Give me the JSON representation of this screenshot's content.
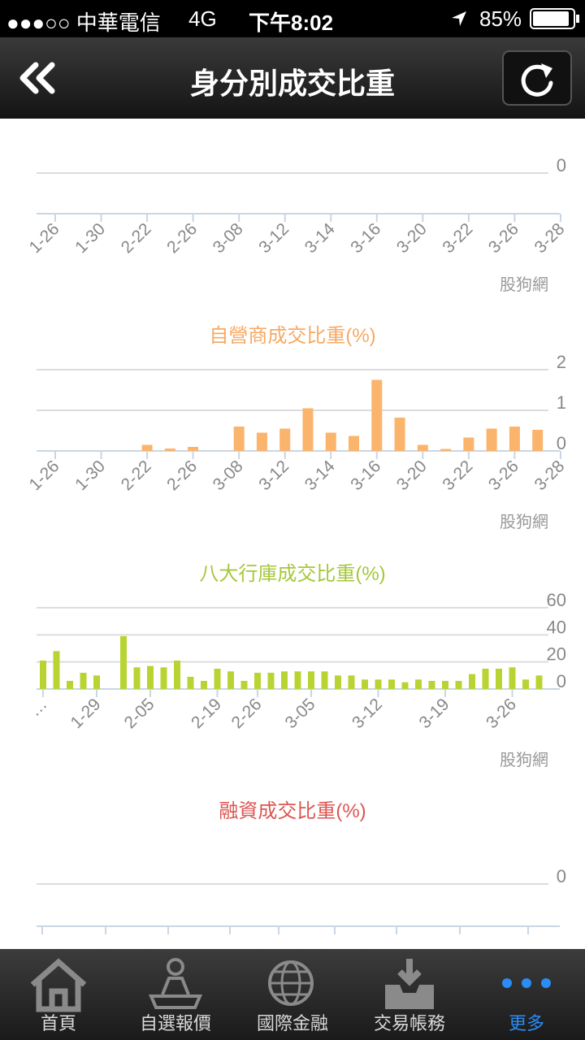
{
  "status_bar": {
    "carrier": "●●●○○ 中華電信",
    "network": "4G",
    "time": "下午8:02",
    "battery": "85%"
  },
  "header": {
    "title": "身分別成交比重"
  },
  "chart_data": [
    {
      "type": "bar",
      "source": "股狗網",
      "categories": [
        "1-26",
        null,
        "1-30",
        null,
        "2-22",
        null,
        "2-26",
        null,
        "3-08",
        null,
        "3-12",
        null,
        "3-14",
        null,
        "3-16",
        null,
        "3-20",
        null,
        "3-22",
        null,
        "3-26",
        null,
        "3-28"
      ],
      "yticks": [
        0
      ]
    },
    {
      "type": "bar",
      "title": "自營商成交比重(%)",
      "source": "股狗網",
      "color": "#fbb46c",
      "categories": [
        "1-26",
        null,
        "1-30",
        null,
        "2-22",
        null,
        "2-26",
        null,
        "3-08",
        null,
        "3-12",
        null,
        "3-14",
        null,
        "3-16",
        null,
        "3-20",
        null,
        "3-22",
        null,
        "3-26",
        null,
        "3-28"
      ],
      "values": [
        null,
        null,
        null,
        null,
        0.15,
        0.06,
        0.1,
        null,
        0.6,
        0.45,
        0.55,
        1.05,
        0.45,
        0.37,
        1.75,
        0.82,
        0.15,
        0.05,
        0.33,
        0.55,
        0.6,
        0.52,
        null
      ],
      "ylim": [
        0,
        2
      ],
      "yticks": [
        0,
        1,
        2
      ]
    },
    {
      "type": "bar",
      "title": "八大行庫成交比重(%)",
      "source": "股狗網",
      "color": "#b8d432",
      "categories": [
        "…",
        null,
        null,
        null,
        "1-29",
        null,
        null,
        null,
        "2-05",
        null,
        null,
        null,
        null,
        "2-19",
        null,
        null,
        "2-26",
        null,
        null,
        null,
        "3-05",
        null,
        null,
        null,
        null,
        "3-12",
        null,
        null,
        null,
        null,
        "3-19",
        null,
        null,
        null,
        null,
        "3-26",
        null,
        null
      ],
      "values": [
        21,
        28,
        6,
        12,
        10,
        null,
        39,
        16,
        17,
        16,
        21,
        9,
        6,
        15,
        13,
        6,
        12,
        12,
        13,
        13,
        13,
        13,
        10,
        10,
        7,
        7,
        7,
        5,
        7,
        6,
        6,
        6,
        11,
        15,
        15,
        16,
        7,
        10
      ],
      "ylim": [
        0,
        60
      ],
      "yticks": [
        0,
        20,
        40,
        60
      ]
    },
    {
      "type": "bar",
      "title": "融資成交比重(%)",
      "yticks": [
        0
      ]
    }
  ],
  "tab_bar": {
    "items": [
      "首頁",
      "自選報價",
      "國際金融",
      "交易帳務",
      "更多"
    ]
  }
}
